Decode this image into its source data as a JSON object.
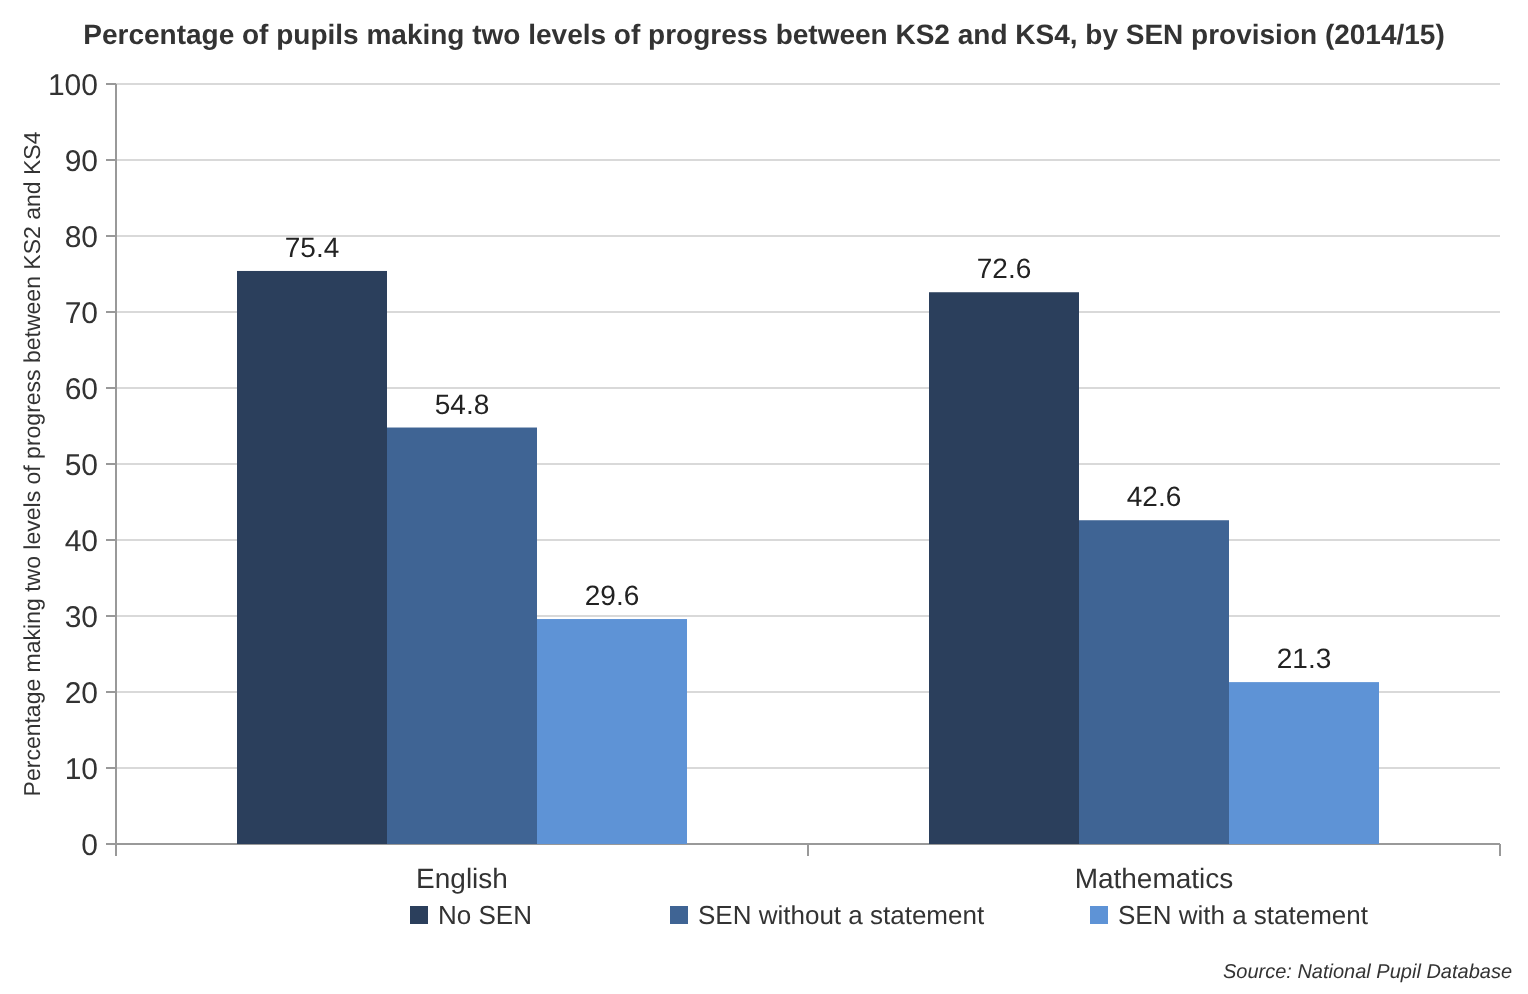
{
  "chart_data": {
    "type": "bar",
    "title": "Percentage of pupils making two levels of progress between KS2 and KS4, by SEN provision (2014/15)",
    "ylabel": "Percentage making two levels of progress between KS2 and KS4",
    "categories": [
      "English",
      "Mathematics"
    ],
    "series": [
      {
        "name": "No SEN",
        "color": "#2b3f5c",
        "values": [
          75.4,
          72.6
        ]
      },
      {
        "name": "SEN without a statement",
        "color": "#3f6494",
        "values": [
          54.8,
          42.6
        ]
      },
      {
        "name": "SEN with a statement",
        "color": "#5e93d6",
        "values": [
          29.6,
          21.3
        ]
      }
    ],
    "ylim": [
      0,
      100
    ],
    "yticks": [
      0,
      10,
      20,
      30,
      40,
      50,
      60,
      70,
      80,
      90,
      100
    ],
    "grid": "y",
    "legend": "bottom",
    "data_labels": true,
    "annotations": [
      "Source:  National Pupil Database"
    ]
  }
}
